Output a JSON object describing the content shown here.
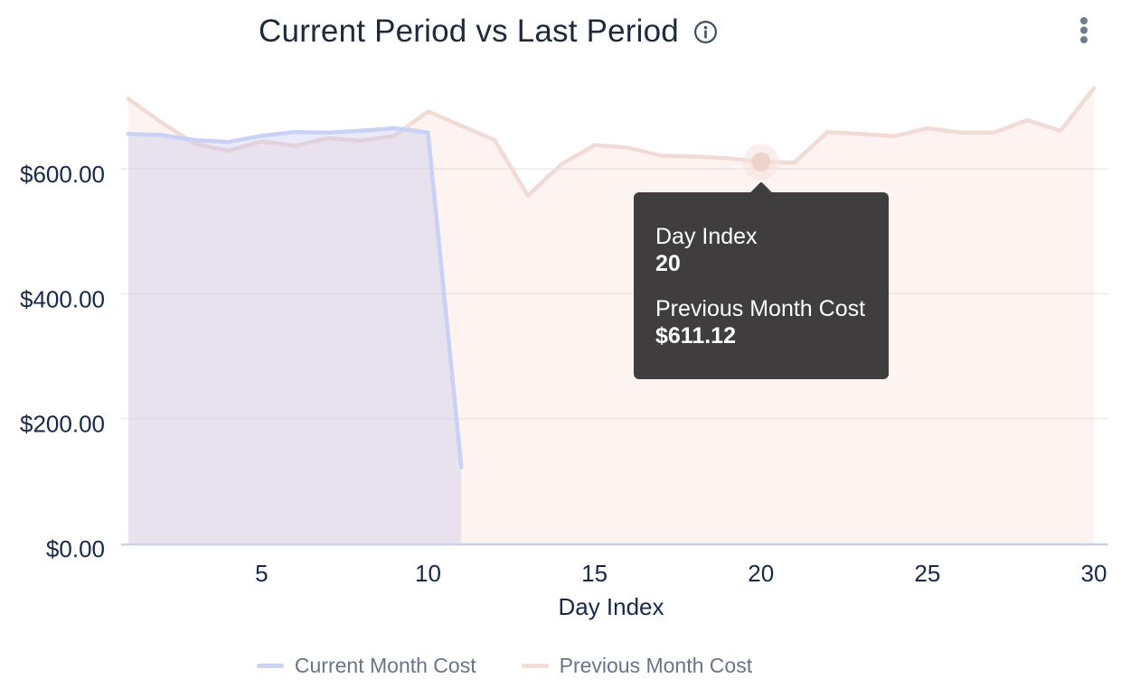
{
  "header": {
    "title": "Current Period vs Last Period"
  },
  "chart_data": {
    "type": "area",
    "title": "Current Period vs Last Period",
    "xlabel": "Day Index",
    "ylabel": "",
    "xlim": [
      1,
      30
    ],
    "ylim": [
      0,
      740
    ],
    "grid": true,
    "legend_position": "bottom",
    "x_ticks": [
      5,
      10,
      15,
      20,
      25,
      30
    ],
    "y_ticks": [
      {
        "value": 600,
        "label": "$600.00"
      },
      {
        "value": 400,
        "label": "$400.00"
      },
      {
        "value": 200,
        "label": "$200.00"
      },
      {
        "value": 0,
        "label": "$0.00"
      }
    ],
    "series": [
      {
        "name": "Current Month Cost",
        "color": "#c9d1f6",
        "fill_color": "#b9bdf0",
        "fill_opacity": 0.3,
        "x": [
          1,
          2,
          3,
          4,
          5,
          6,
          7,
          8,
          9,
          10,
          11
        ],
        "values": [
          656,
          654,
          646,
          643,
          653,
          659,
          658,
          661,
          665,
          658,
          122
        ]
      },
      {
        "name": "Previous Month Cost",
        "color": "#f2dbd4",
        "fill_color": "#f6c8bb",
        "fill_opacity": 0.22,
        "x": [
          1,
          2,
          3,
          4,
          5,
          6,
          7,
          8,
          9,
          10,
          11,
          12,
          13,
          14,
          15,
          16,
          17,
          18,
          19,
          20,
          21,
          22,
          23,
          24,
          25,
          26,
          27,
          28,
          29,
          30
        ],
        "values": [
          712,
          674,
          640,
          629,
          644,
          637,
          649,
          645,
          653,
          692,
          669,
          646,
          557,
          607,
          638,
          634,
          621,
          620,
          617,
          611.12,
          610,
          659,
          656,
          652,
          665,
          658,
          658,
          678,
          661,
          729
        ]
      }
    ],
    "highlight_point": {
      "series": "Previous Month Cost",
      "day_index": 20,
      "value": 611.12,
      "dot_color": "#eed3cb",
      "halo_color": "#f6e2dc"
    }
  },
  "tooltip": {
    "background": "#3f3d3e",
    "text_color": "#ffffff",
    "rows": [
      {
        "label": "Day Index",
        "value": "20"
      },
      {
        "label": "Previous Month Cost",
        "value": "$611.12"
      }
    ]
  },
  "legend": {
    "items": [
      {
        "label": "Current Month Cost",
        "swatch_color": "#ccd3f4"
      },
      {
        "label": "Previous Month Cost",
        "swatch_color": "#f5ded7"
      }
    ]
  },
  "colors": {
    "title_text": "#1d2a3e",
    "axis_text": "#16294c",
    "legend_text": "#697586",
    "gridline": "#ebebef",
    "axis_line": "#c9d3e5",
    "background": "#ffffff",
    "menu_icon": "#6e7c91",
    "info_icon": "#3e4e61"
  }
}
